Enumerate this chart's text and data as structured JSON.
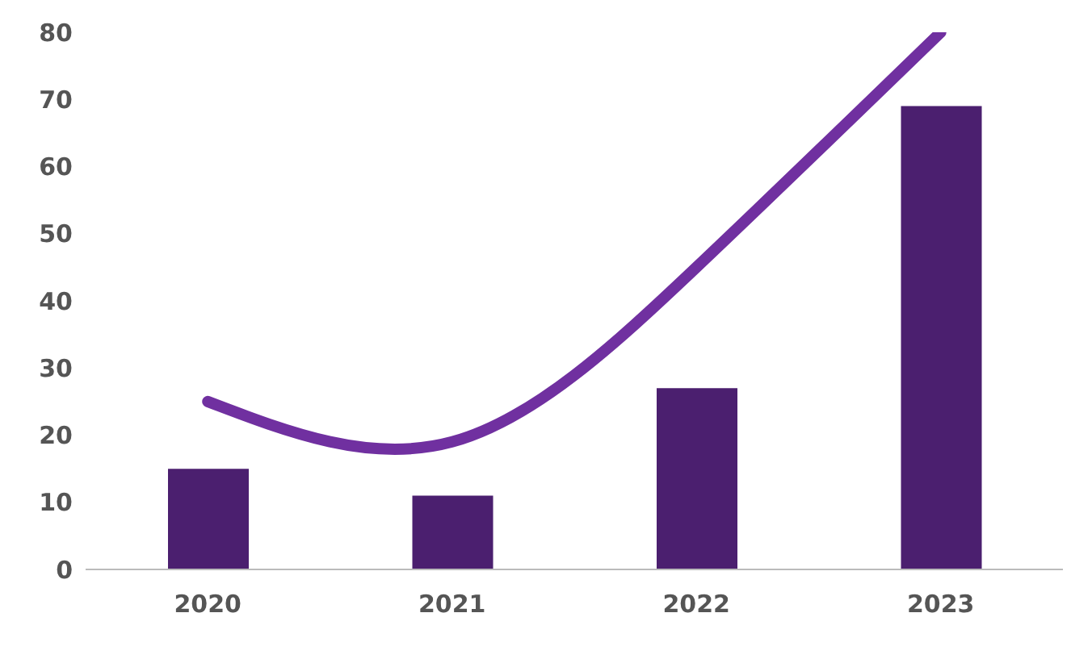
{
  "chart_data": {
    "type": "bar",
    "categories": [
      "2020",
      "2021",
      "2022",
      "2023"
    ],
    "series": [
      {
        "color": "#4b1f6f",
        "values": [
          15,
          11,
          27,
          69
        ]
      },
      {
        "type": "line",
        "color": "#7030a0",
        "values": [
          25,
          19,
          45,
          80
        ]
      }
    ],
    "ylim": [
      0,
      80
    ],
    "yticks": [
      0,
      10,
      20,
      30,
      40,
      50,
      60,
      70,
      80
    ],
    "grid": false,
    "marker": "none"
  }
}
